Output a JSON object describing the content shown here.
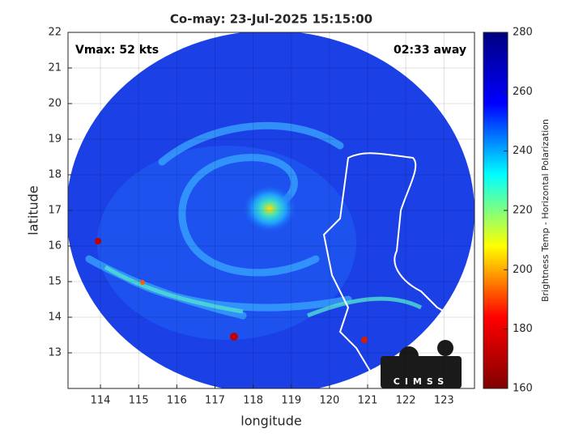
{
  "chart_data": {
    "type": "image",
    "title": "Co-may: 23-Jul-2025 15:15:00",
    "annotations": [
      "Vmax: 52 kts",
      "02:33 away"
    ],
    "x_label": "longitude",
    "y_label": "latitude",
    "xlim": [
      113.15,
      123.8
    ],
    "xticks": [
      114,
      115,
      116,
      117,
      118,
      119,
      120,
      121,
      122,
      123
    ],
    "ylim": [
      12,
      22
    ],
    "yticks": [
      13,
      14,
      15,
      16,
      17,
      18,
      19,
      20,
      21,
      22
    ],
    "grid": true,
    "colorbar": {
      "label": "Brightness Temp - Horizontal Polarization",
      "lim": [
        160,
        280
      ],
      "ticks": [
        160,
        180,
        200,
        220,
        240,
        260,
        280
      ],
      "colors": [
        "#800000",
        "#ff0000",
        "#ffff00",
        "#00ffff",
        "#0000ff",
        "#000080"
      ]
    },
    "logo_text": "CIMSS"
  }
}
